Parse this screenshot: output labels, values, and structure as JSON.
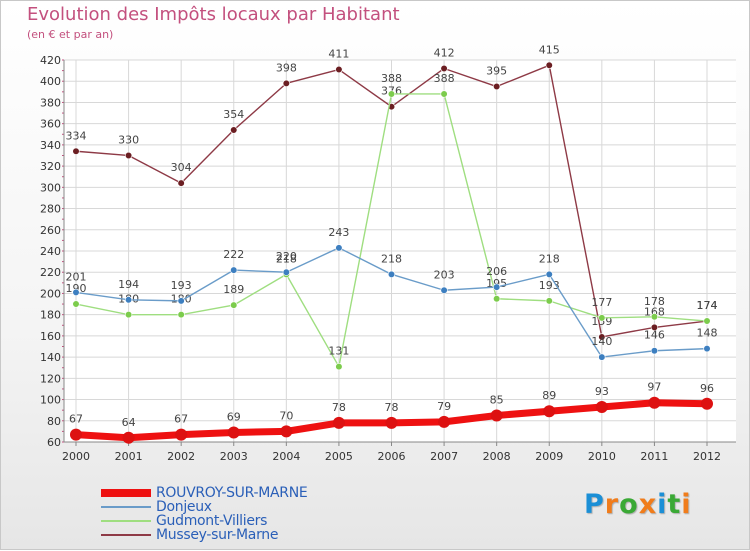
{
  "header": {
    "title": "Evolution des Impôts locaux par Habitant",
    "subtitle": "(en € et par an)"
  },
  "logo": {
    "text": "Proxiti",
    "letter_colors": [
      "#1b8fd6",
      "#f07c1b",
      "#3aa935",
      "#f07c1b",
      "#1b8fd6",
      "#3aa935",
      "#f07c1b"
    ]
  },
  "chart_data": {
    "type": "line",
    "title": "Evolution des Impôts locaux par Habitant",
    "subtitle": "(en € et par an)",
    "xlabel": "",
    "ylabel": "",
    "x": [
      "2000",
      "2001",
      "2002",
      "2003",
      "2004",
      "2005",
      "2006",
      "2007",
      "2008",
      "2009",
      "2010",
      "2011",
      "2012"
    ],
    "ylim": [
      60,
      420
    ],
    "yticks": [
      60,
      80,
      100,
      120,
      140,
      160,
      180,
      200,
      220,
      240,
      260,
      280,
      300,
      320,
      340,
      360,
      380,
      400,
      420
    ],
    "grid": true,
    "legend_position": "bottom-left",
    "series": [
      {
        "name": "ROUVROY-SUR-MARNE",
        "color": "#ee1111",
        "marker": "#dd1111",
        "width": 7,
        "values": [
          67,
          64,
          67,
          69,
          70,
          78,
          78,
          79,
          85,
          89,
          93,
          97,
          96
        ]
      },
      {
        "name": "Donjeux",
        "color": "#6a9cc9",
        "marker": "#3d7fc0",
        "width": 1.4,
        "values": [
          201,
          194,
          193,
          222,
          220,
          243,
          218,
          203,
          206,
          218,
          140,
          146,
          148
        ]
      },
      {
        "name": "Gudmont-Villiers",
        "color": "#9fde80",
        "marker": "#7ccc4c",
        "width": 1.4,
        "values": [
          190,
          180,
          180,
          189,
          218,
          131,
          388,
          388,
          195,
          193,
          177,
          178,
          174
        ]
      },
      {
        "name": "Mussey-sur-Marne",
        "color": "#8e3a46",
        "marker": "#6b1e22",
        "width": 1.4,
        "values": [
          334,
          330,
          304,
          354,
          398,
          411,
          376,
          412,
          395,
          415,
          159,
          168,
          174
        ]
      }
    ]
  }
}
